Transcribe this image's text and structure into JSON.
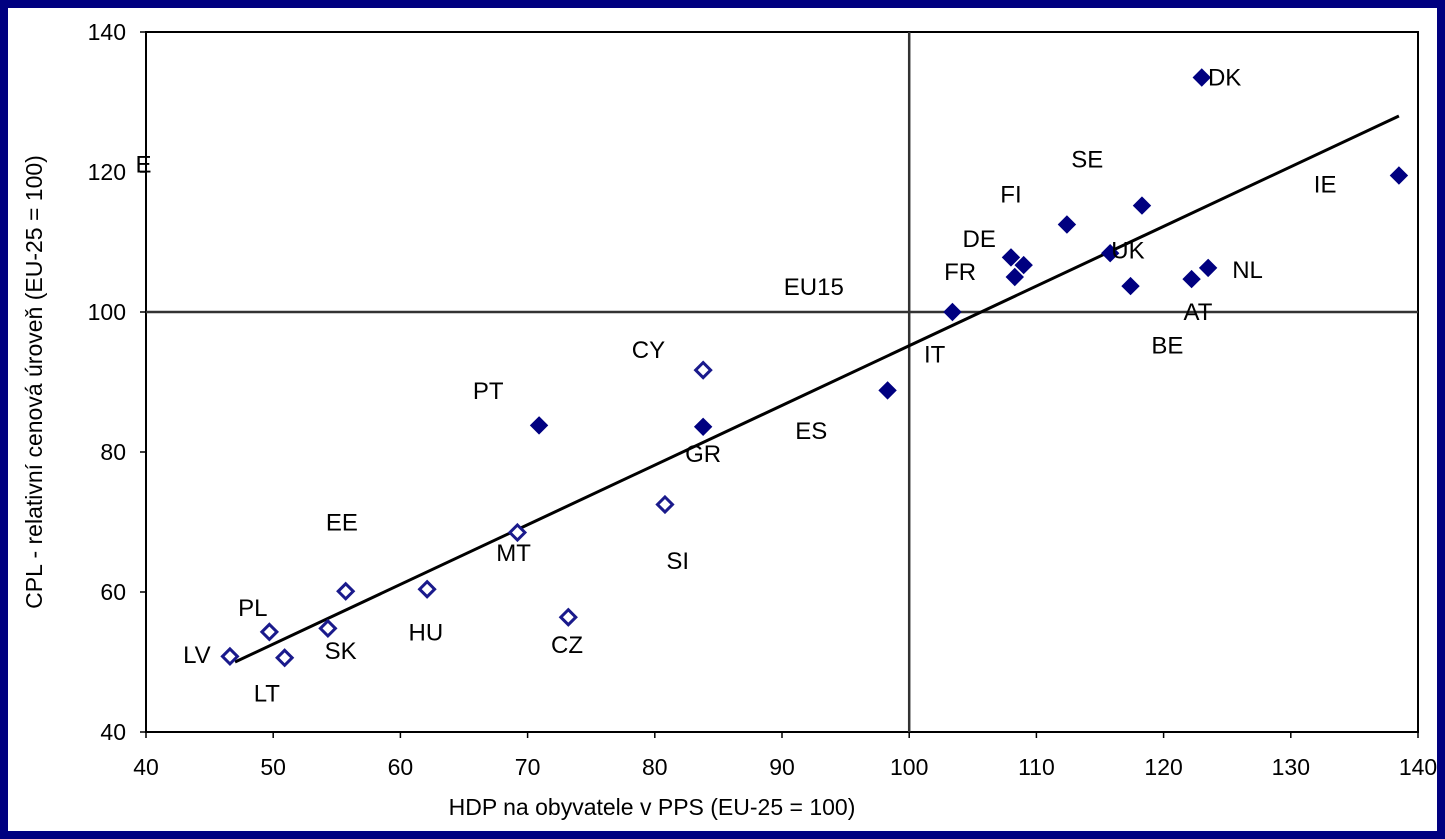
{
  "chart_data": {
    "type": "scatter",
    "title": "",
    "xlabel": "HDP na obyvatele v PPS (EU-25 = 100)",
    "ylabel": "CPL - relativní cenová úroveň (EU-25 = 100)",
    "xlim": [
      40,
      140
    ],
    "ylim": [
      40,
      140
    ],
    "xticks": [
      "40",
      "50",
      "60",
      "70",
      "80",
      "90",
      "100",
      "110",
      "120",
      "130",
      "140"
    ],
    "yticks": [
      "40",
      "60",
      "80",
      "100",
      "120",
      "140"
    ],
    "grid": false,
    "legend": "none",
    "reference_lines": {
      "x": 100,
      "y": 100
    },
    "trendline": {
      "x1": 47,
      "y1": 50,
      "x2": 138.5,
      "y2": 128
    },
    "colors": {
      "frame_border": "#000080",
      "eu15_marker": "#000080",
      "new_member_marker_fill": "#ffffff",
      "new_member_marker_stroke": "#1a1a8c",
      "axis": "#000000"
    },
    "series": [
      {
        "marker": "filled-diamond",
        "points": [
          {
            "x": 123.0,
            "y": 133.5
          },
          {
            "x": 138.5,
            "y": 119.5
          },
          {
            "x": 118.3,
            "y": 115.2
          },
          {
            "x": 112.4,
            "y": 112.5
          },
          {
            "x": 108.0,
            "y": 107.8
          },
          {
            "x": 109.0,
            "y": 106.7
          },
          {
            "x": 108.3,
            "y": 105.0
          },
          {
            "x": 115.8,
            "y": 108.4
          },
          {
            "x": 123.5,
            "y": 106.3
          },
          {
            "x": 122.2,
            "y": 104.7
          },
          {
            "x": 117.4,
            "y": 103.7
          },
          {
            "x": 103.4,
            "y": 100.0
          },
          {
            "x": 98.3,
            "y": 88.8
          },
          {
            "x": 83.8,
            "y": 83.6
          },
          {
            "x": 70.9,
            "y": 83.8
          }
        ]
      },
      {
        "marker": "hollow-diamond",
        "points": [
          {
            "x": 83.8,
            "y": 91.7
          },
          {
            "x": 80.8,
            "y": 72.5
          },
          {
            "x": 69.2,
            "y": 68.5
          },
          {
            "x": 73.2,
            "y": 56.4
          },
          {
            "x": 62.1,
            "y": 60.4
          },
          {
            "x": 55.7,
            "y": 60.1
          },
          {
            "x": 54.3,
            "y": 54.8
          },
          {
            "x": 49.7,
            "y": 54.3
          },
          {
            "x": 50.9,
            "y": 50.6
          },
          {
            "x": 46.6,
            "y": 50.8
          }
        ]
      }
    ],
    "annotations": [
      {
        "text": "DK",
        "x": 124.8,
        "y": 133.5
      },
      {
        "text": "SE",
        "x": 114.0,
        "y": 121.8
      },
      {
        "text": "IE",
        "x": 132.7,
        "y": 118.2
      },
      {
        "text": "FI",
        "x": 108.0,
        "y": 116.8
      },
      {
        "text": "DE",
        "x": 105.5,
        "y": 110.4
      },
      {
        "text": "UK",
        "x": 117.2,
        "y": 108.8
      },
      {
        "text": "NL",
        "x": 126.6,
        "y": 106.0
      },
      {
        "text": "FR",
        "x": 104.0,
        "y": 105.7
      },
      {
        "text": "EU15",
        "x": 92.5,
        "y": 103.6
      },
      {
        "text": "AT",
        "x": 122.7,
        "y": 100.0
      },
      {
        "text": "BE",
        "x": 120.3,
        "y": 95.2
      },
      {
        "text": "IT",
        "x": 102.0,
        "y": 93.9
      },
      {
        "text": "CY",
        "x": 79.5,
        "y": 94.6
      },
      {
        "text": "PT",
        "x": 66.9,
        "y": 88.7
      },
      {
        "text": "ES",
        "x": 92.3,
        "y": 83.0
      },
      {
        "text": "GR",
        "x": 83.8,
        "y": 79.7
      },
      {
        "text": "EE",
        "x": 55.4,
        "y": 69.9
      },
      {
        "text": "MT",
        "x": 68.9,
        "y": 65.6
      },
      {
        "text": "SI",
        "x": 81.8,
        "y": 64.4
      },
      {
        "text": "PL",
        "x": 48.4,
        "y": 57.7
      },
      {
        "text": "HU",
        "x": 62.0,
        "y": 54.2
      },
      {
        "text": "CZ",
        "x": 73.1,
        "y": 52.4
      },
      {
        "text": "SK",
        "x": 55.3,
        "y": 51.6
      },
      {
        "text": "LV",
        "x": 44.0,
        "y": 51.0
      },
      {
        "text": "LT",
        "x": 49.5,
        "y": 45.5
      },
      {
        "text": "E",
        "x": 39.8,
        "y": 121.1
      }
    ]
  }
}
